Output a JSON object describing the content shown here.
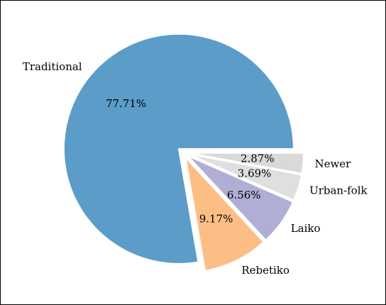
{
  "chart_data": {
    "type": "pie",
    "categories": [
      "Traditional",
      "Rebetiko",
      "Laiko",
      "Urban-folk",
      "Newer"
    ],
    "values": [
      77.71,
      9.17,
      6.56,
      3.69,
      2.87
    ],
    "value_labels": [
      "77.71%",
      "9.17%",
      "6.56%",
      "3.69%",
      "2.87%"
    ],
    "colors": [
      "#5b9cc9",
      "#fdbe85",
      "#b1aed6",
      "#dfdfdf",
      "#d9d9d9"
    ]
  }
}
